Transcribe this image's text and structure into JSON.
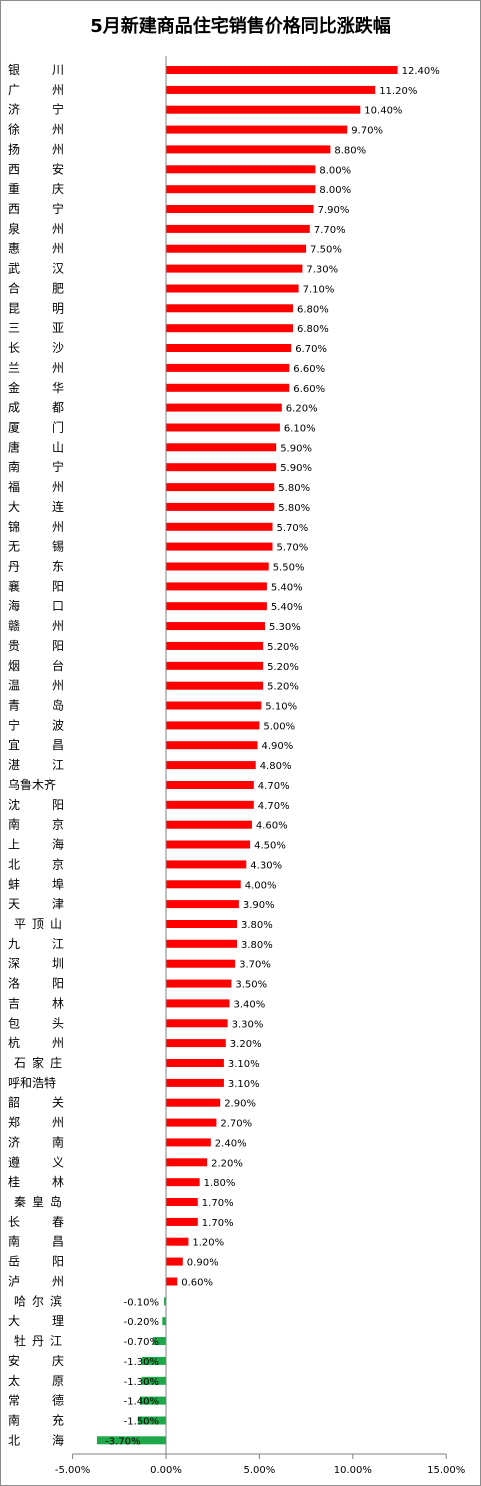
{
  "chart_data": {
    "type": "bar",
    "orientation": "horizontal",
    "title": "5月新建商品住宅销售价格同比涨跌幅",
    "colors": {
      "positive": "#ff0000",
      "negative": "#1fa84a"
    },
    "xlim": [
      -0.05,
      0.15
    ],
    "xticks": [
      {
        "value": -0.05,
        "label": "-5.00%"
      },
      {
        "value": 0,
        "label": "0.00%"
      },
      {
        "value": 0.05,
        "label": "5.00%"
      },
      {
        "value": 0.1,
        "label": "10.00%"
      },
      {
        "value": 0.15,
        "label": "15.00%"
      }
    ],
    "grid": false,
    "legend": "none",
    "categories": [
      "银　川",
      "广　州",
      "济　宁",
      "徐　州",
      "扬　州",
      "西　安",
      "重　庆",
      "西　宁",
      "泉　州",
      "惠　州",
      "武　汉",
      "合　肥",
      "昆　明",
      "三　亚",
      "长　沙",
      "兰　州",
      "金　华",
      "成　都",
      "厦　门",
      "唐　山",
      "南　宁",
      "福　州",
      "大　连",
      "锦　州",
      "无　锡",
      "丹　东",
      "襄　阳",
      "海　口",
      "赣　州",
      "贵　阳",
      "烟　台",
      "温　州",
      "青　岛",
      "宁　波",
      "宜　昌",
      "湛　江",
      "乌鲁木齐",
      "沈　阳",
      "南　京",
      "上　海",
      "北　京",
      "蚌　埠",
      "天　津",
      "平顶山",
      "九　江",
      "深　圳",
      "洛　阳",
      "吉　林",
      "包　头",
      "杭　州",
      "石家庄",
      "呼和浩特",
      "韶　关",
      "郑　州",
      "济　南",
      "遵　义",
      "桂　林",
      "秦皇岛",
      "长　春",
      "南　昌",
      "岳　阳",
      "泸　州",
      "哈尔滨",
      "大　理",
      "牡丹江",
      "安　庆",
      "太　原",
      "常　德",
      "南　充",
      "北　海"
    ],
    "values": [
      0.124,
      0.112,
      0.104,
      0.097,
      0.088,
      0.08,
      0.08,
      0.079,
      0.077,
      0.075,
      0.073,
      0.071,
      0.068,
      0.068,
      0.067,
      0.066,
      0.066,
      0.062,
      0.061,
      0.059,
      0.059,
      0.058,
      0.058,
      0.057,
      0.057,
      0.055,
      0.054,
      0.054,
      0.053,
      0.052,
      0.052,
      0.052,
      0.051,
      0.05,
      0.049,
      0.048,
      0.047,
      0.047,
      0.046,
      0.045,
      0.043,
      0.04,
      0.039,
      0.038,
      0.038,
      0.037,
      0.035,
      0.034,
      0.033,
      0.032,
      0.031,
      0.031,
      0.029,
      0.027,
      0.024,
      0.022,
      0.018,
      0.017,
      0.017,
      0.012,
      0.009,
      0.006,
      -0.001,
      -0.002,
      -0.007,
      -0.013,
      -0.013,
      -0.014,
      -0.015,
      -0.037
    ],
    "value_labels": [
      "12.40%",
      "11.20%",
      "10.40%",
      "9.70%",
      "8.80%",
      "8.00%",
      "8.00%",
      "7.90%",
      "7.70%",
      "7.50%",
      "7.30%",
      "7.10%",
      "6.80%",
      "6.80%",
      "6.70%",
      "6.60%",
      "6.60%",
      "6.20%",
      "6.10%",
      "5.90%",
      "5.90%",
      "5.80%",
      "5.80%",
      "5.70%",
      "5.70%",
      "5.50%",
      "5.40%",
      "5.40%",
      "5.30%",
      "5.20%",
      "5.20%",
      "5.20%",
      "5.10%",
      "5.00%",
      "4.90%",
      "4.80%",
      "4.70%",
      "4.70%",
      "4.60%",
      "4.50%",
      "4.30%",
      "4.00%",
      "3.90%",
      "3.80%",
      "3.80%",
      "3.70%",
      "3.50%",
      "3.40%",
      "3.30%",
      "3.20%",
      "3.10%",
      "3.10%",
      "2.90%",
      "2.70%",
      "2.40%",
      "2.20%",
      "1.80%",
      "1.70%",
      "1.70%",
      "1.20%",
      "0.90%",
      "0.60%",
      "-0.10%",
      "-0.20%",
      "-0.70%",
      "-1.30%",
      "-1.30%",
      "-1.40%",
      "-1.50%",
      "-3.70%"
    ]
  }
}
